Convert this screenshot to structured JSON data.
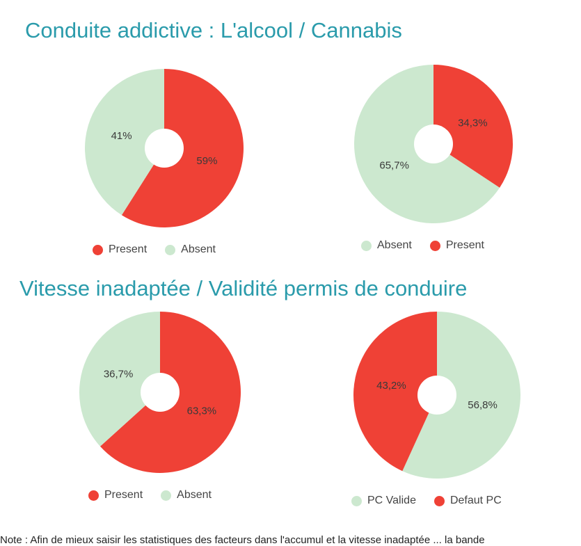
{
  "section_titles": [
    "Conduite addictive : L'alcool / Cannabis",
    "Vitesse inadaptée / Validité permis de conduire"
  ],
  "colors": {
    "red": "#ef4136",
    "green": "#cce8cf",
    "title": "#2a9bab"
  },
  "chart_data": [
    {
      "type": "pie",
      "slices": [
        {
          "label": "Present",
          "value": 59,
          "text": "59%",
          "color": "#ef4136"
        },
        {
          "label": "Absent",
          "value": 41,
          "text": "41%",
          "color": "#cce8cf"
        }
      ],
      "legend": [
        "Present",
        "Absent"
      ]
    },
    {
      "type": "pie",
      "slices": [
        {
          "label": "Present",
          "value": 34.3,
          "text": "34,3%",
          "color": "#ef4136"
        },
        {
          "label": "Absent",
          "value": 65.7,
          "text": "65,7%",
          "color": "#cce8cf"
        }
      ],
      "legend": [
        "Absent",
        "Present"
      ]
    },
    {
      "type": "pie",
      "slices": [
        {
          "label": "Present",
          "value": 63.3,
          "text": "63,3%",
          "color": "#ef4136"
        },
        {
          "label": "Absent",
          "value": 36.7,
          "text": "36,7%",
          "color": "#cce8cf"
        }
      ],
      "legend": [
        "Present",
        "Absent"
      ]
    },
    {
      "type": "pie",
      "slices": [
        {
          "label": "PC Valide",
          "value": 56.8,
          "text": "56,8%",
          "color": "#cce8cf"
        },
        {
          "label": "Defaut PC",
          "value": 43.2,
          "text": "43,2%",
          "color": "#ef4136"
        }
      ],
      "legend": [
        "PC Valide",
        "Defaut PC"
      ]
    }
  ],
  "footnote": "Note : Afin de mieux saisir les statistiques des facteurs dans l'accumul et  la  vitesse  inadaptée  ...  la  bande"
}
